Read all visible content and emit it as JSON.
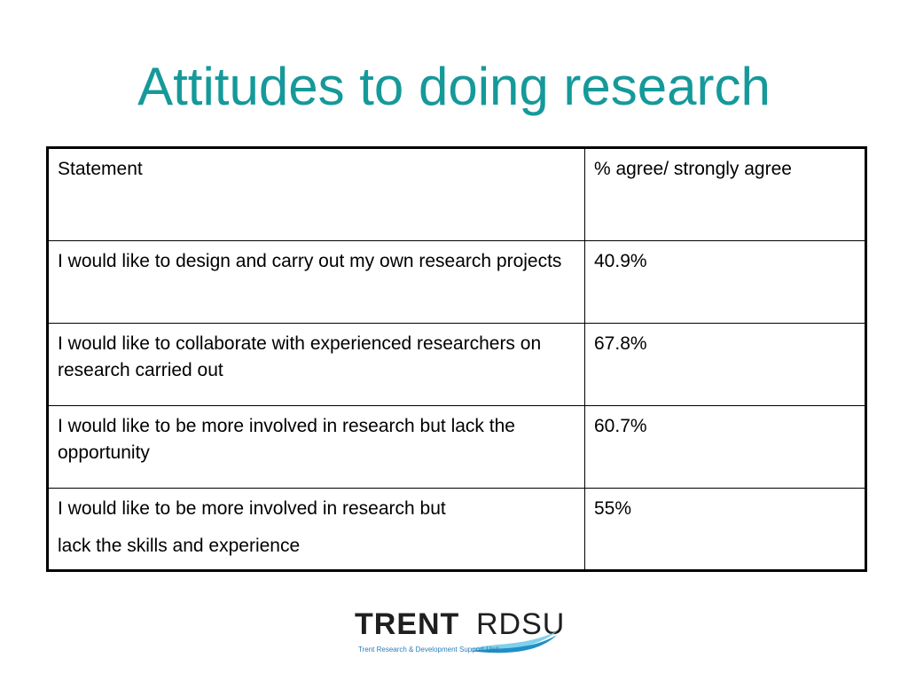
{
  "slide": {
    "title": "Attitudes to doing research"
  },
  "colors": {
    "title": "#15999a",
    "logo_text": "#1f1f1f",
    "logo_tagline": "#2a7fb8",
    "logo_wave_dark": "#1f8fc8",
    "logo_wave_light": "#7fd0ea"
  },
  "table": {
    "headers": {
      "statement": "Statement",
      "percent": "% agree/ strongly agree"
    },
    "rows": [
      {
        "statement": "I would like to design and carry out my own research projects",
        "percent": "40.9%"
      },
      {
        "statement": "I would like to collaborate with experienced researchers on research carried out",
        "percent": "67.8%"
      },
      {
        "statement": "I would like to be more involved in research but lack the opportunity",
        "percent": "60.7%"
      },
      {
        "statement_line1": "I would like to be more involved in research but",
        "statement_line2": "lack the skills and experience",
        "percent": "55%"
      }
    ]
  },
  "logo": {
    "word_bold": "TRENT",
    "word_light": "RDSU",
    "tagline": "Trent Research & Development Support Unit"
  }
}
